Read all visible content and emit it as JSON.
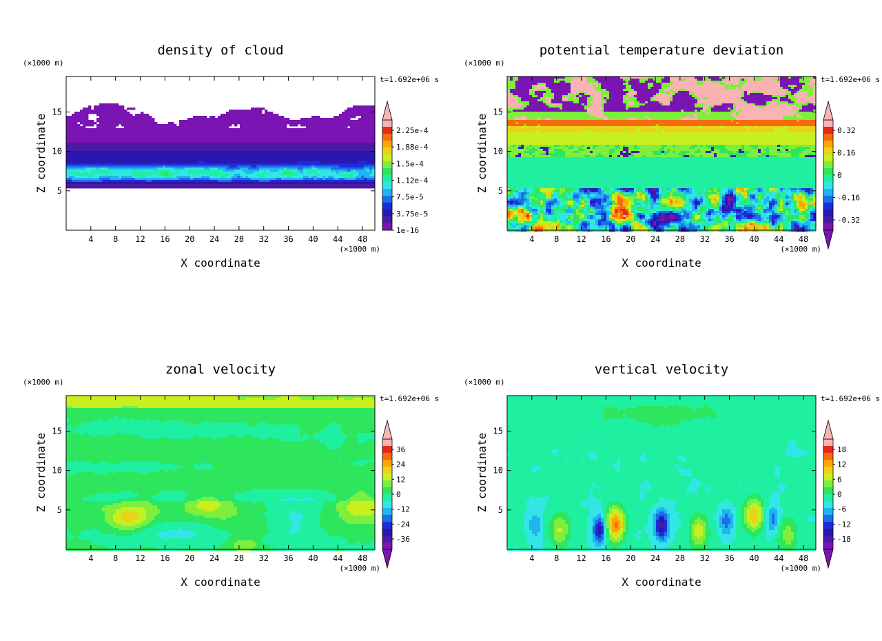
{
  "page": {
    "background": "#ffffff"
  },
  "chart_data": [
    {
      "type": "heatmap",
      "title": "density of cloud",
      "xlabel": "X coordinate",
      "ylabel": "Z coordinate",
      "x_unit": "(×1000 m)",
      "y_unit": "(×1000 m)",
      "time_label": "t=1.692e+06 s",
      "xlim": [
        0,
        50
      ],
      "ylim": [
        0,
        19.5
      ],
      "x_ticks": [
        4,
        8,
        12,
        16,
        20,
        24,
        28,
        32,
        36,
        40,
        44,
        48
      ],
      "y_ticks": [
        5,
        10,
        15
      ],
      "colorbar": {
        "labels": [
          "2.25e-4",
          "1.88e-4",
          "1.5e-4",
          "1.12e-4",
          "7.5e-5",
          "3.75e-5",
          "1e-16"
        ],
        "colors": [
          "#f9b3b3",
          "#e62a16",
          "#f76a12",
          "#ffa500",
          "#e8d21b",
          "#c8f01f",
          "#7fee3c",
          "#2ee65e",
          "#1fefa0",
          "#33e6e6",
          "#21b4f0",
          "#1a6fe8",
          "#1b2ed9",
          "#2a17b0",
          "#4b1aa3",
          "#7a14b2"
        ],
        "arrow_top": true,
        "arrow_bottom": false
      },
      "field": "cloud"
    },
    {
      "type": "heatmap",
      "title": "potential temperature deviation",
      "xlabel": "X coordinate",
      "ylabel": "Z coordinate",
      "x_unit": "(×1000 m)",
      "y_unit": "(×1000 m)",
      "time_label": "t=1.692e+06 s",
      "xlim": [
        0,
        50
      ],
      "ylim": [
        0,
        19.5
      ],
      "x_ticks": [
        4,
        8,
        12,
        16,
        20,
        24,
        28,
        32,
        36,
        40,
        44,
        48
      ],
      "y_ticks": [
        5,
        10,
        15
      ],
      "colorbar": {
        "labels": [
          "0.32",
          "0.16",
          "0",
          "-0.16",
          "-0.32"
        ],
        "colors": [
          "#f9b3b3",
          "#e62a16",
          "#f76a12",
          "#ffa500",
          "#e8d21b",
          "#c8f01f",
          "#7fee3c",
          "#2ee65e",
          "#1fefa0",
          "#33e6e6",
          "#21b4f0",
          "#1a6fe8",
          "#1b2ed9",
          "#2a17b0",
          "#4b1aa3",
          "#7a14b2"
        ],
        "arrow_top": true,
        "arrow_bottom": true
      },
      "field": "theta"
    },
    {
      "type": "heatmap",
      "title": "zonal velocity",
      "xlabel": "X coordinate",
      "ylabel": "Z coordinate",
      "x_unit": "(×1000 m)",
      "y_unit": "(×1000 m)",
      "time_label": "t=1.692e+06 s",
      "xlim": [
        0,
        50
      ],
      "ylim": [
        0,
        19.5
      ],
      "x_ticks": [
        4,
        8,
        12,
        16,
        20,
        24,
        28,
        32,
        36,
        40,
        44,
        48
      ],
      "y_ticks": [
        5,
        10,
        15
      ],
      "colorbar": {
        "labels": [
          "36",
          "24",
          "12",
          "0",
          "-12",
          "-24",
          "-36"
        ],
        "colors": [
          "#f9b3b3",
          "#e62a16",
          "#f76a12",
          "#ffa500",
          "#e8d21b",
          "#c8f01f",
          "#7fee3c",
          "#2ee65e",
          "#1fefa0",
          "#33e6e6",
          "#21b4f0",
          "#1a6fe8",
          "#1b2ed9",
          "#2a17b0",
          "#4b1aa3",
          "#7a14b2"
        ],
        "arrow_top": true,
        "arrow_bottom": true
      },
      "field": "u"
    },
    {
      "type": "heatmap",
      "title": "vertical velocity",
      "xlabel": "X coordinate",
      "ylabel": "Z coordinate",
      "x_unit": "(×1000 m)",
      "y_unit": "(×1000 m)",
      "time_label": "t=1.692e+06 s",
      "xlim": [
        0,
        50
      ],
      "ylim": [
        0,
        19.5
      ],
      "x_ticks": [
        4,
        8,
        12,
        16,
        20,
        24,
        28,
        32,
        36,
        40,
        44,
        48
      ],
      "y_ticks": [
        5,
        10,
        15
      ],
      "colorbar": {
        "labels": [
          "18",
          "12",
          "6",
          "0",
          "-6",
          "-12",
          "-18"
        ],
        "colors": [
          "#f9b3b3",
          "#e62a16",
          "#f76a12",
          "#ffa500",
          "#e8d21b",
          "#c8f01f",
          "#7fee3c",
          "#2ee65e",
          "#1fefa0",
          "#33e6e6",
          "#21b4f0",
          "#1a6fe8",
          "#1b2ed9",
          "#2a17b0",
          "#4b1aa3",
          "#7a14b2"
        ],
        "arrow_top": true,
        "arrow_bottom": true
      },
      "field": "w"
    }
  ]
}
